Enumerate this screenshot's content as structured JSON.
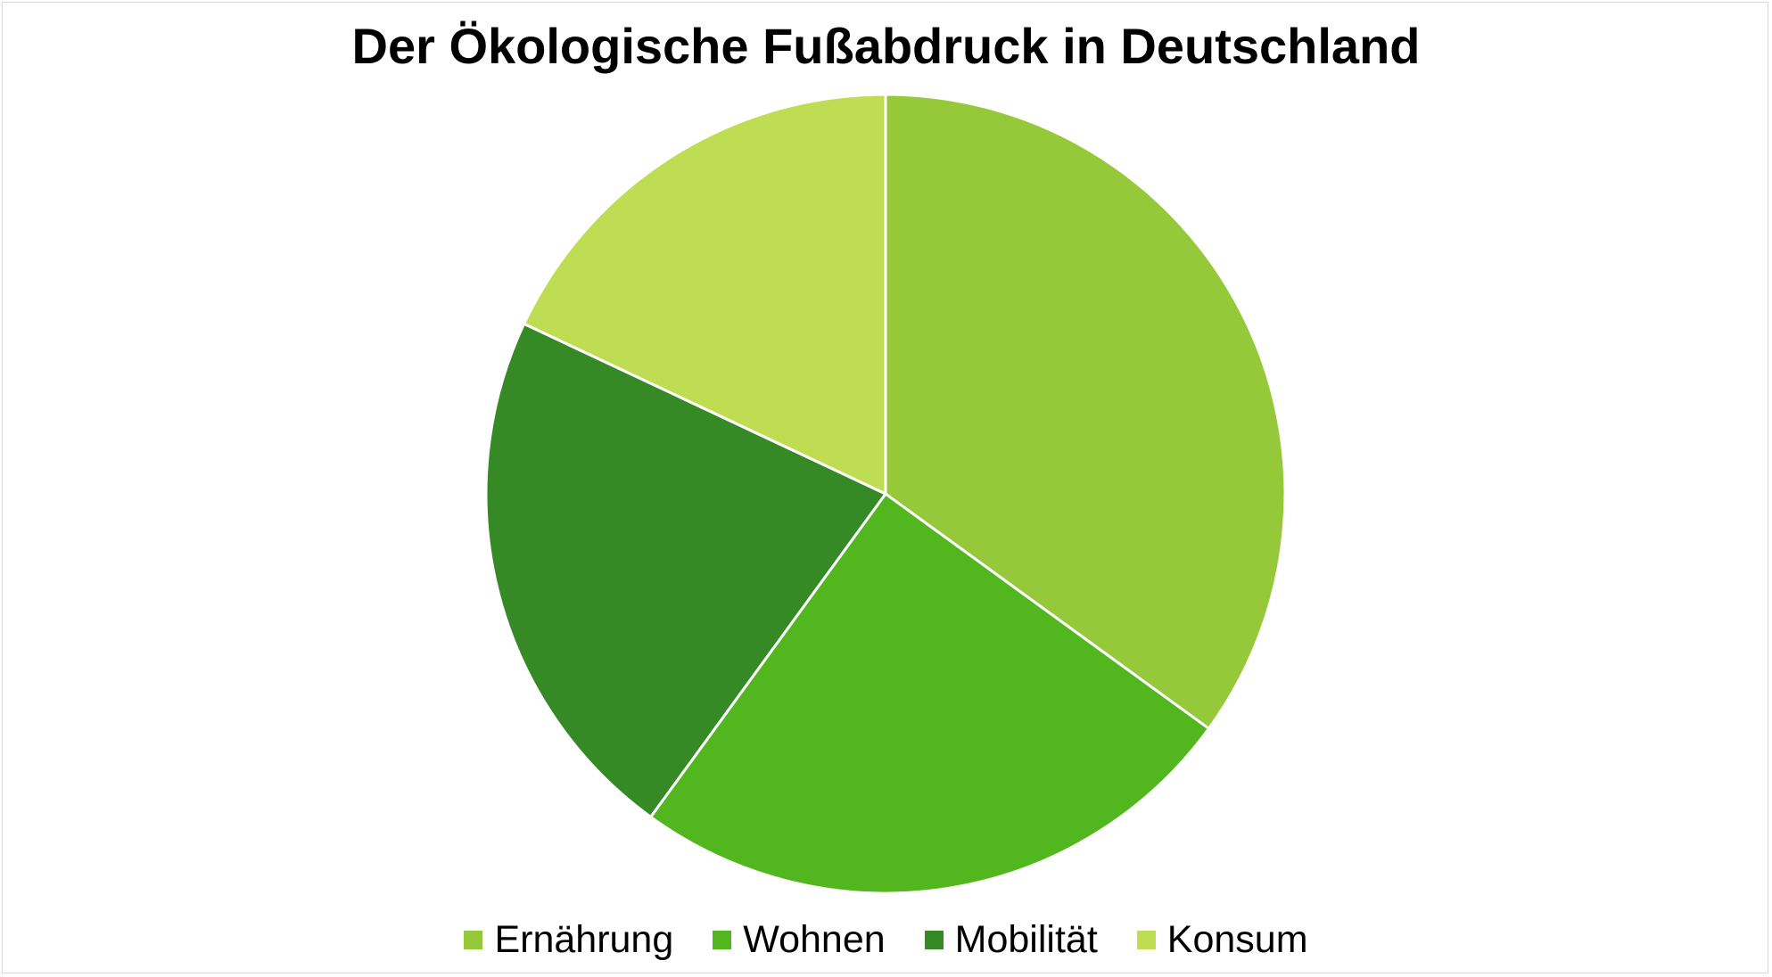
{
  "chart_data": {
    "type": "pie",
    "title": "Der Ökologische Fußabdruck in Deutschland",
    "categories": [
      "Ernährung",
      "Wohnen",
      "Mobilität",
      "Konsum"
    ],
    "values": [
      35,
      25,
      22,
      18
    ],
    "colors": [
      "#95c93a",
      "#52b71f",
      "#368a26",
      "#bedd52"
    ],
    "start_angle_deg": 0,
    "direction": "clockwise",
    "legend_position": "bottom"
  }
}
